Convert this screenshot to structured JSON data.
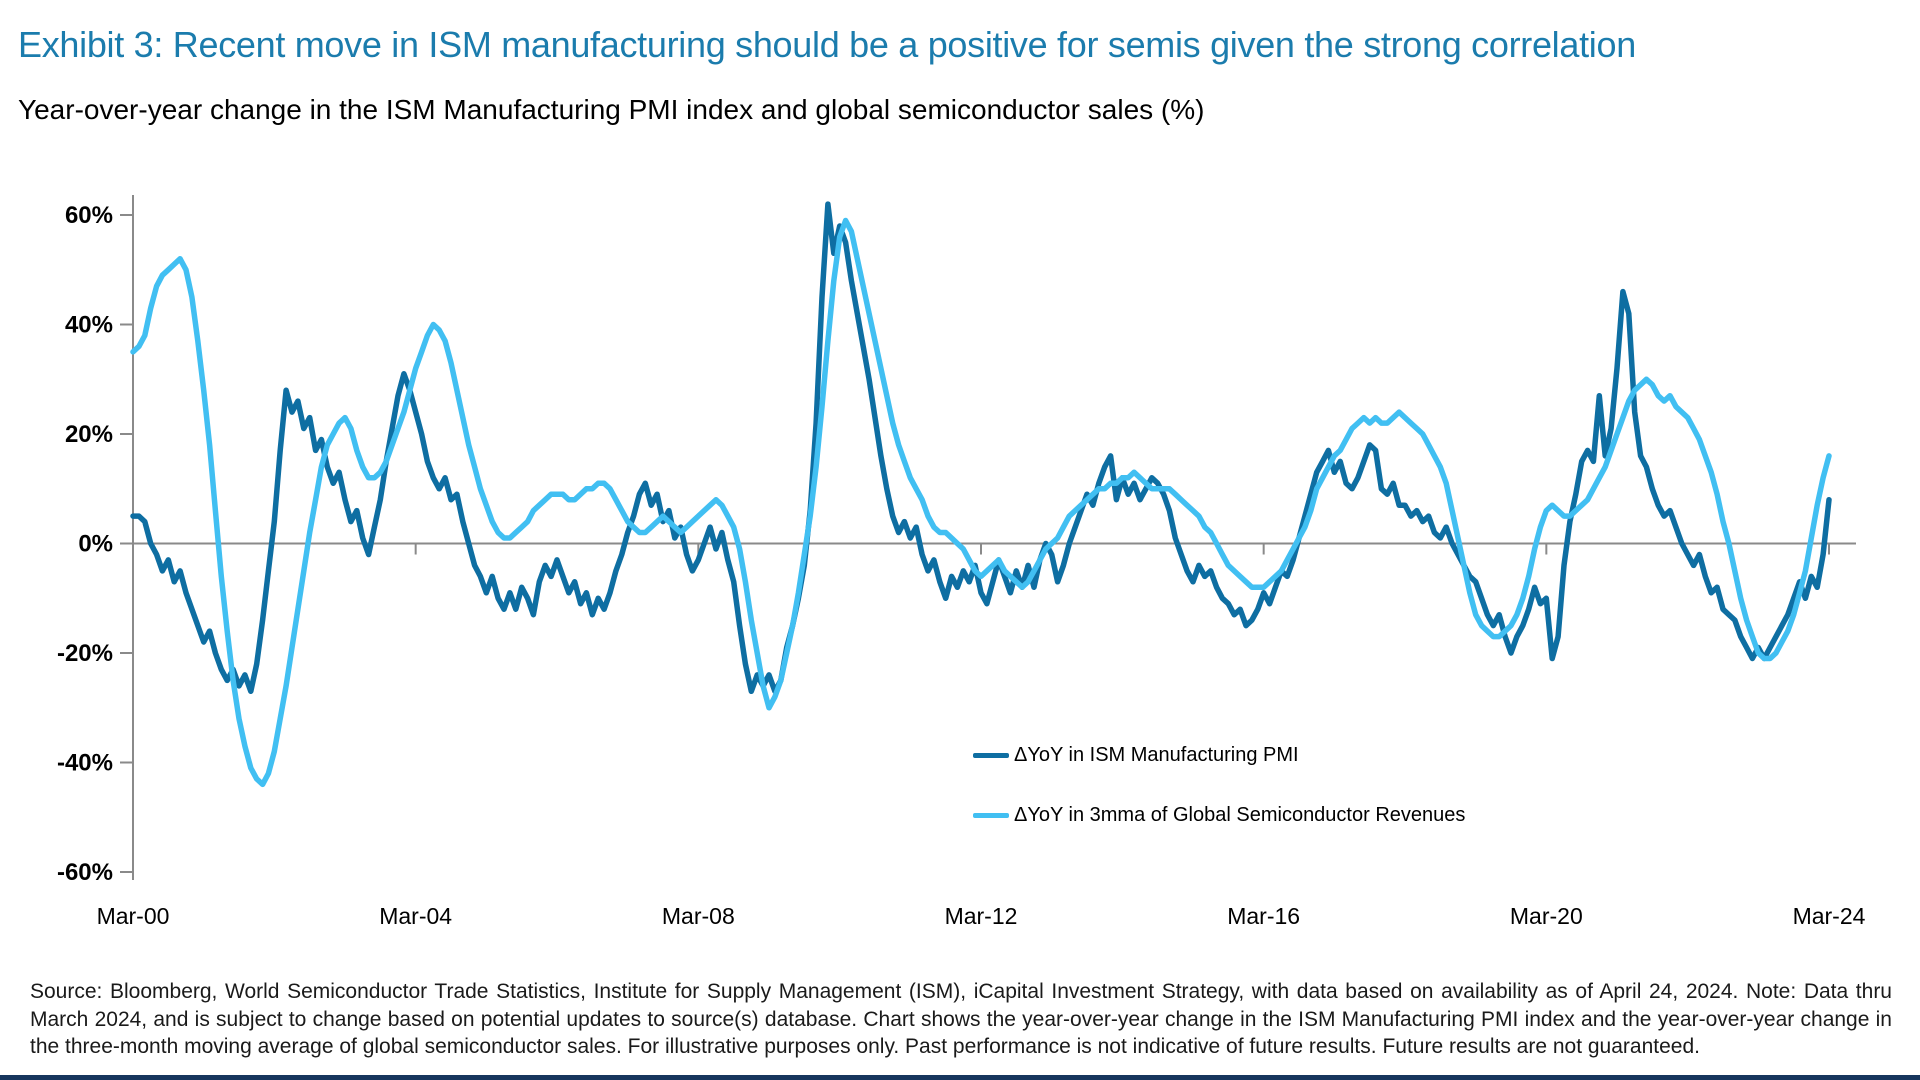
{
  "page": {
    "exhibit_title": "Exhibit 3: Recent move in ISM manufacturing should be a positive for semis given the strong correlation",
    "subtitle": "Year-over-year change in the ISM Manufacturing PMI index and global semiconductor sales (%)",
    "footnote": "Source: Bloomberg, World Semiconductor Trade Statistics, Institute for Supply Management (ISM), iCapital Investment Strategy, with data based on availability as of April 24, 2024. Note: Data thru March 2024, and is subject to change based on potential updates to source(s) database. Chart shows the year-over-year change in the ISM Manufacturing PMI index and the year-over-year change in the three-month moving average of global semiconductor sales. For illustrative purposes only. Past performance is not indicative of future results. Future results are not guaranteed.",
    "colors": {
      "title_blue": "#1B7CAD",
      "ism_line": "#0E6EA2",
      "semis_line": "#41BFF2",
      "axis_gray": "#8a8a8a",
      "bottom_rule_navy": "#17365D"
    }
  },
  "chart_data": {
    "type": "line",
    "title": "Year-over-year change in the ISM Manufacturing PMI index and global semiconductor sales (%)",
    "frequency": "monthly",
    "x_start": "Mar-2000",
    "x_end": "Mar-2024",
    "grid": "zero-line only",
    "legend_position": "inside lower-center",
    "x_axis": {
      "tick_labels": [
        "Mar-00",
        "Mar-04",
        "Mar-08",
        "Mar-12",
        "Mar-16",
        "Mar-20",
        "Mar-24"
      ],
      "tick_months": [
        0,
        48,
        96,
        144,
        192,
        240,
        288
      ]
    },
    "y_axis": {
      "tick_labels": [
        "60%",
        "40%",
        "20%",
        "0%",
        "-20%",
        "-40%",
        "-60%"
      ],
      "tick_values": [
        60,
        40,
        20,
        0,
        -20,
        -40,
        -60
      ],
      "ylim": [
        -60,
        62
      ],
      "unit": "percent"
    },
    "series": [
      {
        "name": "ΔYoY in ISM Manufacturing PMI",
        "color": "#0E6EA2",
        "values": [
          5,
          5,
          4,
          0,
          -2,
          -5,
          -3,
          -7,
          -5,
          -9,
          -12,
          -15,
          -18,
          -16,
          -20,
          -23,
          -25,
          -23,
          -26,
          -24,
          -27,
          -22,
          -14,
          -5,
          4,
          17,
          28,
          24,
          26,
          21,
          23,
          17,
          19,
          14,
          11,
          13,
          8,
          4,
          6,
          1,
          -2,
          3,
          8,
          15,
          21,
          27,
          31,
          28,
          24,
          20,
          15,
          12,
          10,
          12,
          8,
          9,
          4,
          0,
          -4,
          -6,
          -9,
          -6,
          -10,
          -12,
          -9,
          -12,
          -8,
          -10,
          -13,
          -7,
          -4,
          -6,
          -3,
          -6,
          -9,
          -7,
          -11,
          -9,
          -13,
          -10,
          -12,
          -9,
          -5,
          -2,
          2,
          5,
          9,
          11,
          7,
          9,
          4,
          6,
          1,
          3,
          -2,
          -5,
          -3,
          0,
          3,
          -1,
          2,
          -3,
          -7,
          -15,
          -22,
          -27,
          -24,
          -26,
          -24,
          -27,
          -25,
          -19,
          -15,
          -10,
          -4,
          6,
          22,
          45,
          62,
          53,
          58,
          55,
          48,
          42,
          36,
          30,
          23,
          16,
          10,
          5,
          2,
          4,
          1,
          3,
          -2,
          -5,
          -3,
          -7,
          -10,
          -6,
          -8,
          -5,
          -7,
          -4,
          -9,
          -11,
          -7,
          -3,
          -6,
          -9,
          -5,
          -8,
          -4,
          -8,
          -3,
          0,
          -2,
          -7,
          -4,
          0,
          3,
          6,
          9,
          7,
          11,
          14,
          16,
          8,
          12,
          9,
          11,
          8,
          10,
          12,
          11,
          9,
          6,
          1,
          -2,
          -5,
          -7,
          -4,
          -6,
          -5,
          -8,
          -10,
          -11,
          -13,
          -12,
          -15,
          -14,
          -12,
          -9,
          -11,
          -8,
          -5,
          -6,
          -3,
          1,
          5,
          9,
          13,
          15,
          17,
          13,
          15,
          11,
          10,
          12,
          15,
          18,
          17,
          10,
          9,
          11,
          7,
          7,
          5,
          6,
          4,
          5,
          2,
          1,
          3,
          0,
          -2,
          -4,
          -6,
          -7,
          -10,
          -13,
          -15,
          -13,
          -17,
          -20,
          -17,
          -15,
          -12,
          -8,
          -11,
          -10,
          -21,
          -17,
          -4,
          4,
          9,
          15,
          17,
          15,
          27,
          16,
          21,
          32,
          46,
          42,
          24,
          16,
          14,
          10,
          7,
          5,
          6,
          3,
          0,
          -2,
          -4,
          -2,
          -6,
          -9,
          -8,
          -12,
          -13,
          -14,
          -17,
          -19,
          -21,
          -19,
          -21,
          -19,
          -17,
          -15,
          -13,
          -10,
          -7,
          -10,
          -6,
          -8,
          -2,
          8
        ]
      },
      {
        "name": "ΔYoY in 3mma of Global Semiconductor Revenues",
        "color": "#41BFF2",
        "values": [
          35,
          36,
          38,
          43,
          47,
          49,
          50,
          51,
          52,
          50,
          45,
          37,
          28,
          18,
          6,
          -6,
          -16,
          -25,
          -32,
          -37,
          -41,
          -43,
          -44,
          -42,
          -38,
          -32,
          -26,
          -19,
          -12,
          -5,
          2,
          8,
          14,
          18,
          20,
          22,
          23,
          21,
          17,
          14,
          12,
          12,
          13,
          15,
          18,
          21,
          24,
          28,
          32,
          35,
          38,
          40,
          39,
          37,
          33,
          28,
          23,
          18,
          14,
          10,
          7,
          4,
          2,
          1,
          1,
          2,
          3,
          4,
          6,
          7,
          8,
          9,
          9,
          9,
          8,
          8,
          9,
          10,
          10,
          11,
          11,
          10,
          8,
          6,
          4,
          3,
          2,
          2,
          3,
          4,
          5,
          4,
          3,
          2,
          3,
          4,
          5,
          6,
          7,
          8,
          7,
          5,
          3,
          -1,
          -7,
          -14,
          -20,
          -26,
          -30,
          -28,
          -25,
          -20,
          -15,
          -9,
          -2,
          5,
          14,
          25,
          37,
          48,
          56,
          59,
          57,
          52,
          47,
          42,
          37,
          32,
          27,
          22,
          18,
          15,
          12,
          10,
          8,
          5,
          3,
          2,
          2,
          1,
          0,
          -1,
          -3,
          -5,
          -6,
          -5,
          -4,
          -3,
          -5,
          -6,
          -7,
          -8,
          -7,
          -5,
          -3,
          -1,
          0,
          1,
          3,
          5,
          6,
          7,
          8,
          9,
          10,
          10,
          11,
          11,
          12,
          12,
          13,
          12,
          11,
          10,
          10,
          10,
          10,
          9,
          8,
          7,
          6,
          5,
          3,
          2,
          0,
          -2,
          -4,
          -5,
          -6,
          -7,
          -8,
          -8,
          -8,
          -7,
          -6,
          -5,
          -3,
          -1,
          1,
          3,
          6,
          10,
          12,
          14,
          16,
          17,
          19,
          21,
          22,
          23,
          22,
          23,
          22,
          22,
          23,
          24,
          23,
          22,
          21,
          20,
          18,
          16,
          14,
          11,
          6,
          1,
          -4,
          -9,
          -13,
          -15,
          -16,
          -17,
          -17,
          -16,
          -15,
          -13,
          -10,
          -6,
          -1,
          3,
          6,
          7,
          6,
          5,
          5,
          6,
          7,
          8,
          10,
          12,
          14,
          17,
          20,
          23,
          26,
          28,
          29,
          30,
          29,
          27,
          26,
          27,
          25,
          24,
          23,
          21,
          19,
          16,
          13,
          9,
          4,
          0,
          -5,
          -10,
          -14,
          -17,
          -20,
          -21,
          -21,
          -20,
          -18,
          -16,
          -13,
          -9,
          -5,
          1,
          7,
          12,
          16
        ]
      }
    ]
  }
}
